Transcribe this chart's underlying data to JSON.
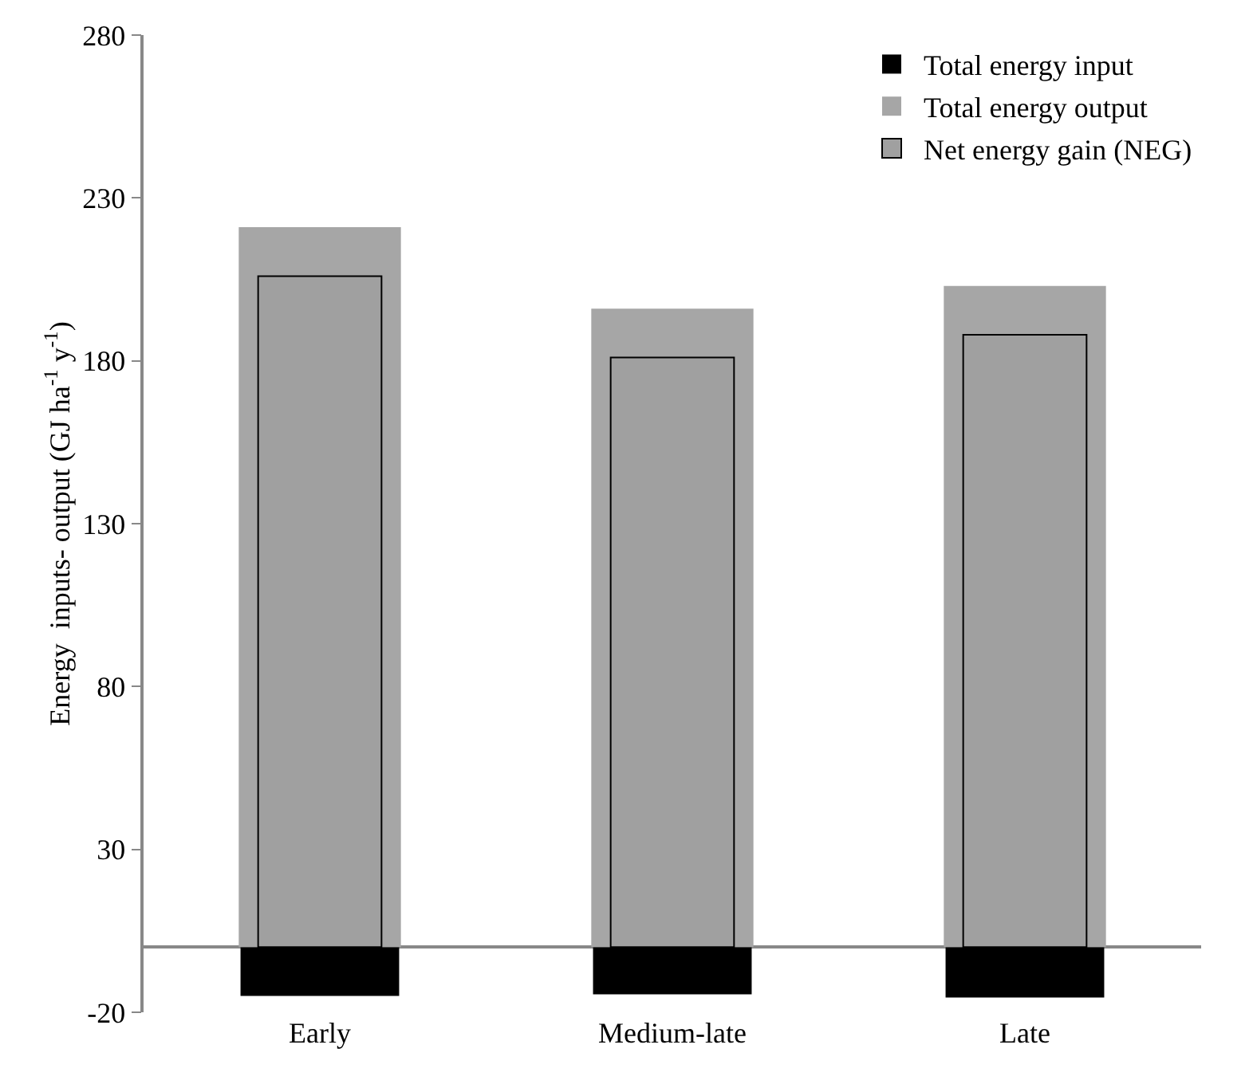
{
  "chart_data": {
    "type": "bar",
    "ylabel": "Energy  inputs- output (GJ ha$^{-1}$ y$^{-1}$)",
    "categories": [
      "Early",
      "Medium-late",
      "Late"
    ],
    "series": [
      {
        "name": "Total energy input",
        "color": "#000000",
        "values": [
          -15,
          -14.5,
          -15.5
        ]
      },
      {
        "name": "Total energy output",
        "color": "#a6a6a6",
        "values": [
          221,
          196,
          203
        ]
      },
      {
        "name": "Net energy gain (NEG)",
        "color": "#a0a0a0",
        "values": [
          206,
          181,
          188
        ]
      }
    ],
    "ylim": [
      -20,
      280
    ],
    "yticks": [
      -20,
      30,
      80,
      130,
      180,
      230,
      280
    ],
    "grid": false,
    "legend": "top right"
  }
}
